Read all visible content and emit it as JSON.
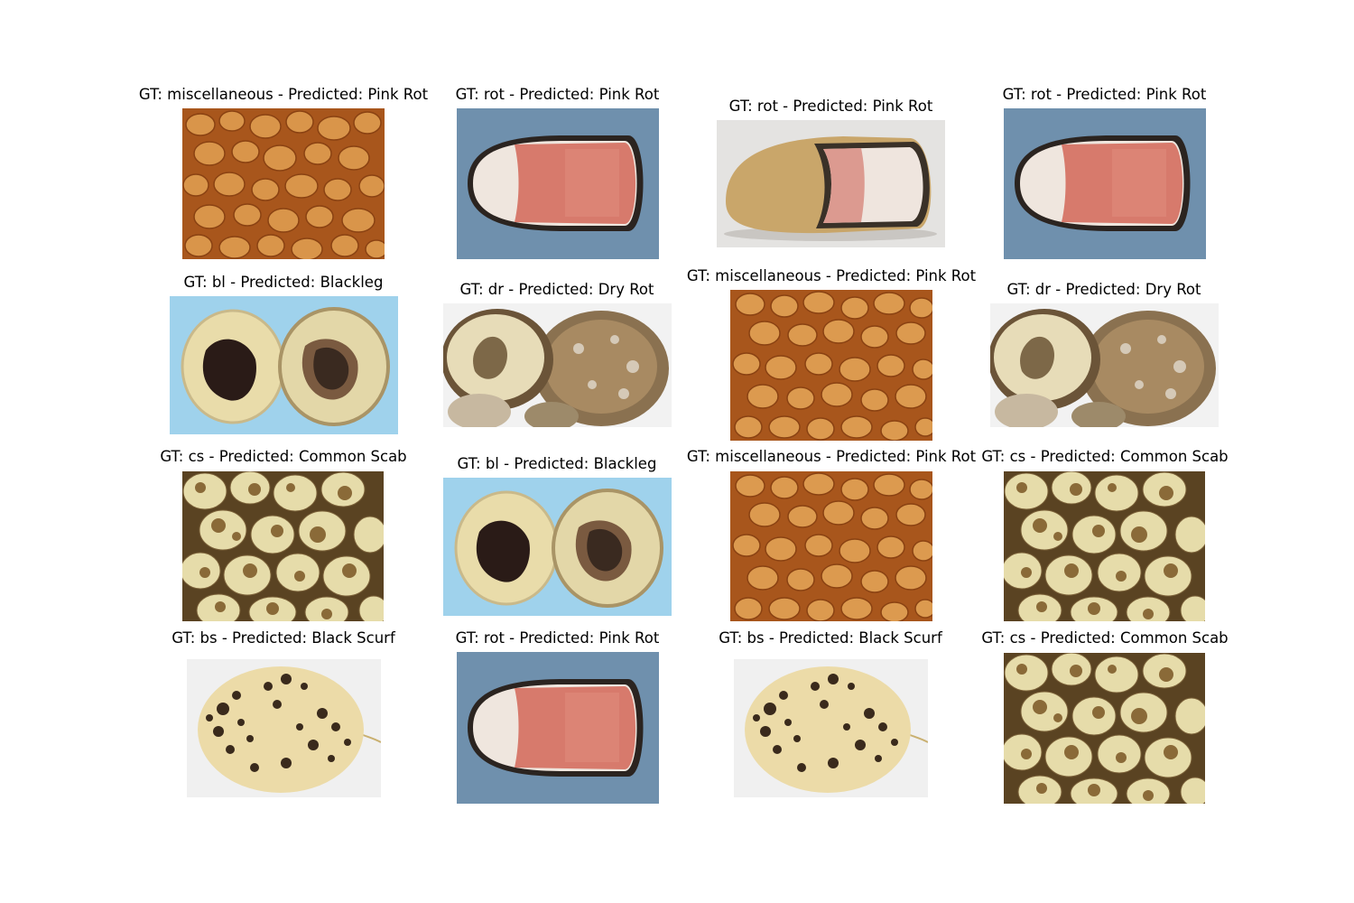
{
  "grid": [
    {
      "caption": "GT: miscellaneous - Predicted: Pink Rot",
      "image": "small-potatoes-pile"
    },
    {
      "caption": "GT: rot - Predicted: Pink Rot",
      "image": "pink-rot-cut-potato-blue-bg"
    },
    {
      "caption": "GT: rot - Predicted: Pink Rot",
      "image": "pink-rot-cut-potato-white-bg"
    },
    {
      "caption": "GT: rot - Predicted: Pink Rot",
      "image": "pink-rot-cut-potato-blue-bg"
    },
    {
      "caption": "GT: bl - Predicted: Blackleg",
      "image": "blackleg-halves"
    },
    {
      "caption": "GT: dr - Predicted: Dry Rot",
      "image": "dry-rot-potato"
    },
    {
      "caption": "GT: miscellaneous - Predicted: Pink Rot",
      "image": "small-potatoes-pile"
    },
    {
      "caption": "GT: dr - Predicted: Dry Rot",
      "image": "dry-rot-potato"
    },
    {
      "caption": "GT: cs - Predicted: Common Scab",
      "image": "common-scab-pile"
    },
    {
      "caption": "GT: bl - Predicted: Blackleg",
      "image": "blackleg-halves"
    },
    {
      "caption": "GT: miscellaneous - Predicted: Pink Rot",
      "image": "small-potatoes-pile"
    },
    {
      "caption": "GT: cs - Predicted: Common Scab",
      "image": "common-scab-pile"
    },
    {
      "caption": "GT: bs - Predicted: Black Scurf",
      "image": "black-scurf-potato"
    },
    {
      "caption": "GT: rot - Predicted: Pink Rot",
      "image": "pink-rot-cut-potato-blue-bg"
    },
    {
      "caption": "GT: bs - Predicted: Black Scurf",
      "image": "black-scurf-potato"
    },
    {
      "caption": "GT: cs - Predicted: Common Scab",
      "image": "common-scab-pile"
    }
  ]
}
